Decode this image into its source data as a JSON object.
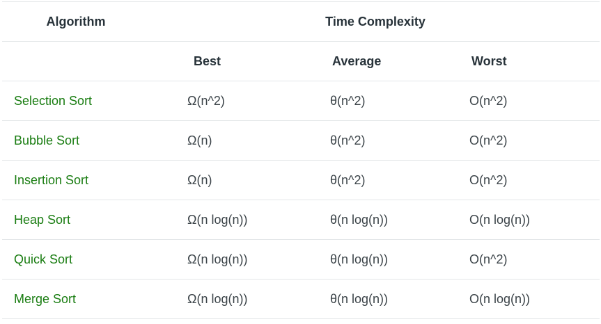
{
  "header": {
    "algorithm": "Algorithm",
    "time_complexity": "Time Complexity",
    "best": "Best",
    "average": "Average",
    "worst": "Worst"
  },
  "rows": [
    {
      "name": "Selection Sort",
      "best": "Ω(n^2)",
      "average": "θ(n^2)",
      "worst": "O(n^2)"
    },
    {
      "name": "Bubble Sort",
      "best": "Ω(n)",
      "average": "θ(n^2)",
      "worst": "O(n^2)"
    },
    {
      "name": "Insertion Sort",
      "best": "Ω(n)",
      "average": "θ(n^2)",
      "worst": "O(n^2)"
    },
    {
      "name": "Heap Sort",
      "best": "Ω(n log(n))",
      "average": "θ(n log(n))",
      "worst": "O(n log(n))"
    },
    {
      "name": "Quick Sort",
      "best": "Ω(n log(n))",
      "average": "θ(n log(n))",
      "worst": "O(n^2)"
    },
    {
      "name": "Merge Sort",
      "best": "Ω(n log(n))",
      "average": "θ(n log(n))",
      "worst": "O(n log(n))"
    }
  ],
  "colors": {
    "link": "#1a7d12",
    "text": "#273239",
    "border": "#e3e6e8"
  }
}
